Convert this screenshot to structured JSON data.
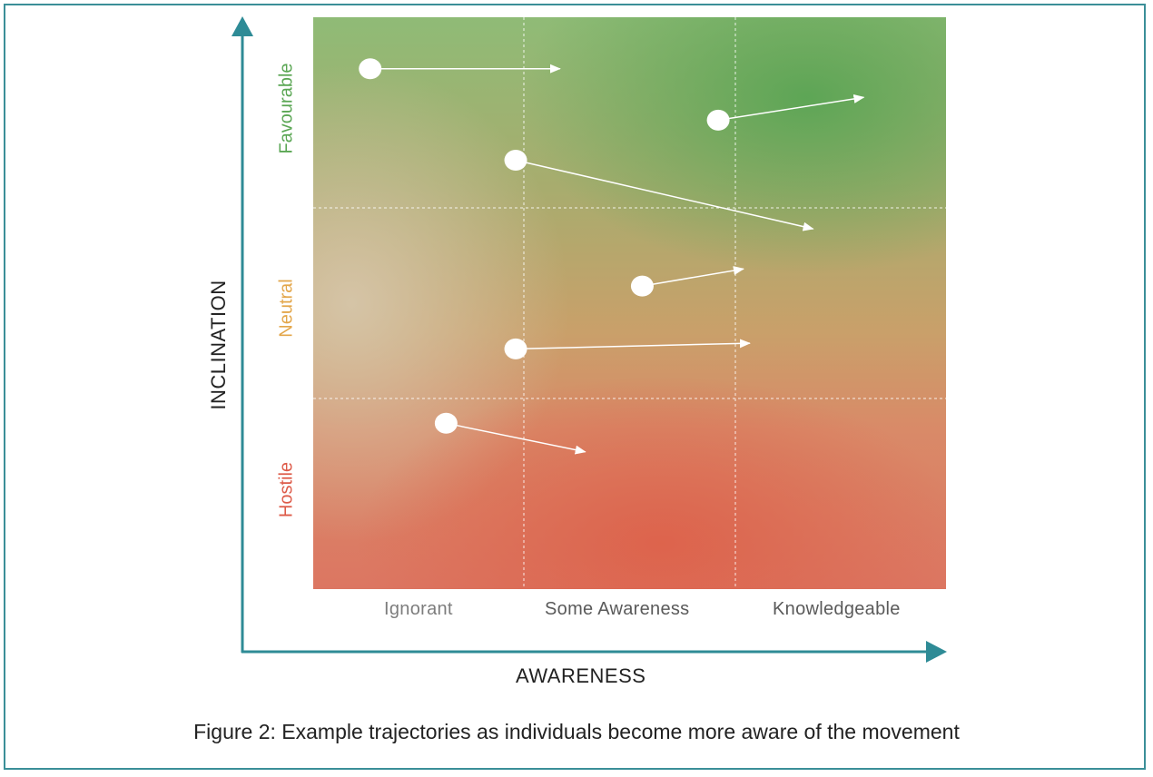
{
  "diagram": {
    "caption": "Figure 2: Example trajectories as individuals become more aware of the movement",
    "x_axis_title": "AWARENESS",
    "y_axis_title": "INCLINATION",
    "x_categories": [
      "Ignorant",
      "Some Awareness",
      "Knowledgeable"
    ],
    "y_categories": [
      "Hostile",
      "Neutral",
      "Favourable"
    ],
    "colors": {
      "axis": "#2e8b96",
      "favourable": "#5aa653",
      "neutral": "#e3a64a",
      "hostile": "#dd5a48",
      "frame": "#3b8f98"
    },
    "trajectories": [
      {
        "from": {
          "awareness": 0.09,
          "inclination": 0.91
        },
        "to": {
          "awareness": 0.39,
          "inclination": 0.91
        }
      },
      {
        "from": {
          "awareness": 0.64,
          "inclination": 0.82
        },
        "to": {
          "awareness": 0.87,
          "inclination": 0.86
        }
      },
      {
        "from": {
          "awareness": 0.32,
          "inclination": 0.75
        },
        "to": {
          "awareness": 0.79,
          "inclination": 0.63
        }
      },
      {
        "from": {
          "awareness": 0.52,
          "inclination": 0.53
        },
        "to": {
          "awareness": 0.68,
          "inclination": 0.56
        }
      },
      {
        "from": {
          "awareness": 0.32,
          "inclination": 0.42
        },
        "to": {
          "awareness": 0.69,
          "inclination": 0.43
        }
      },
      {
        "from": {
          "awareness": 0.21,
          "inclination": 0.29
        },
        "to": {
          "awareness": 0.43,
          "inclination": 0.24
        }
      }
    ]
  }
}
